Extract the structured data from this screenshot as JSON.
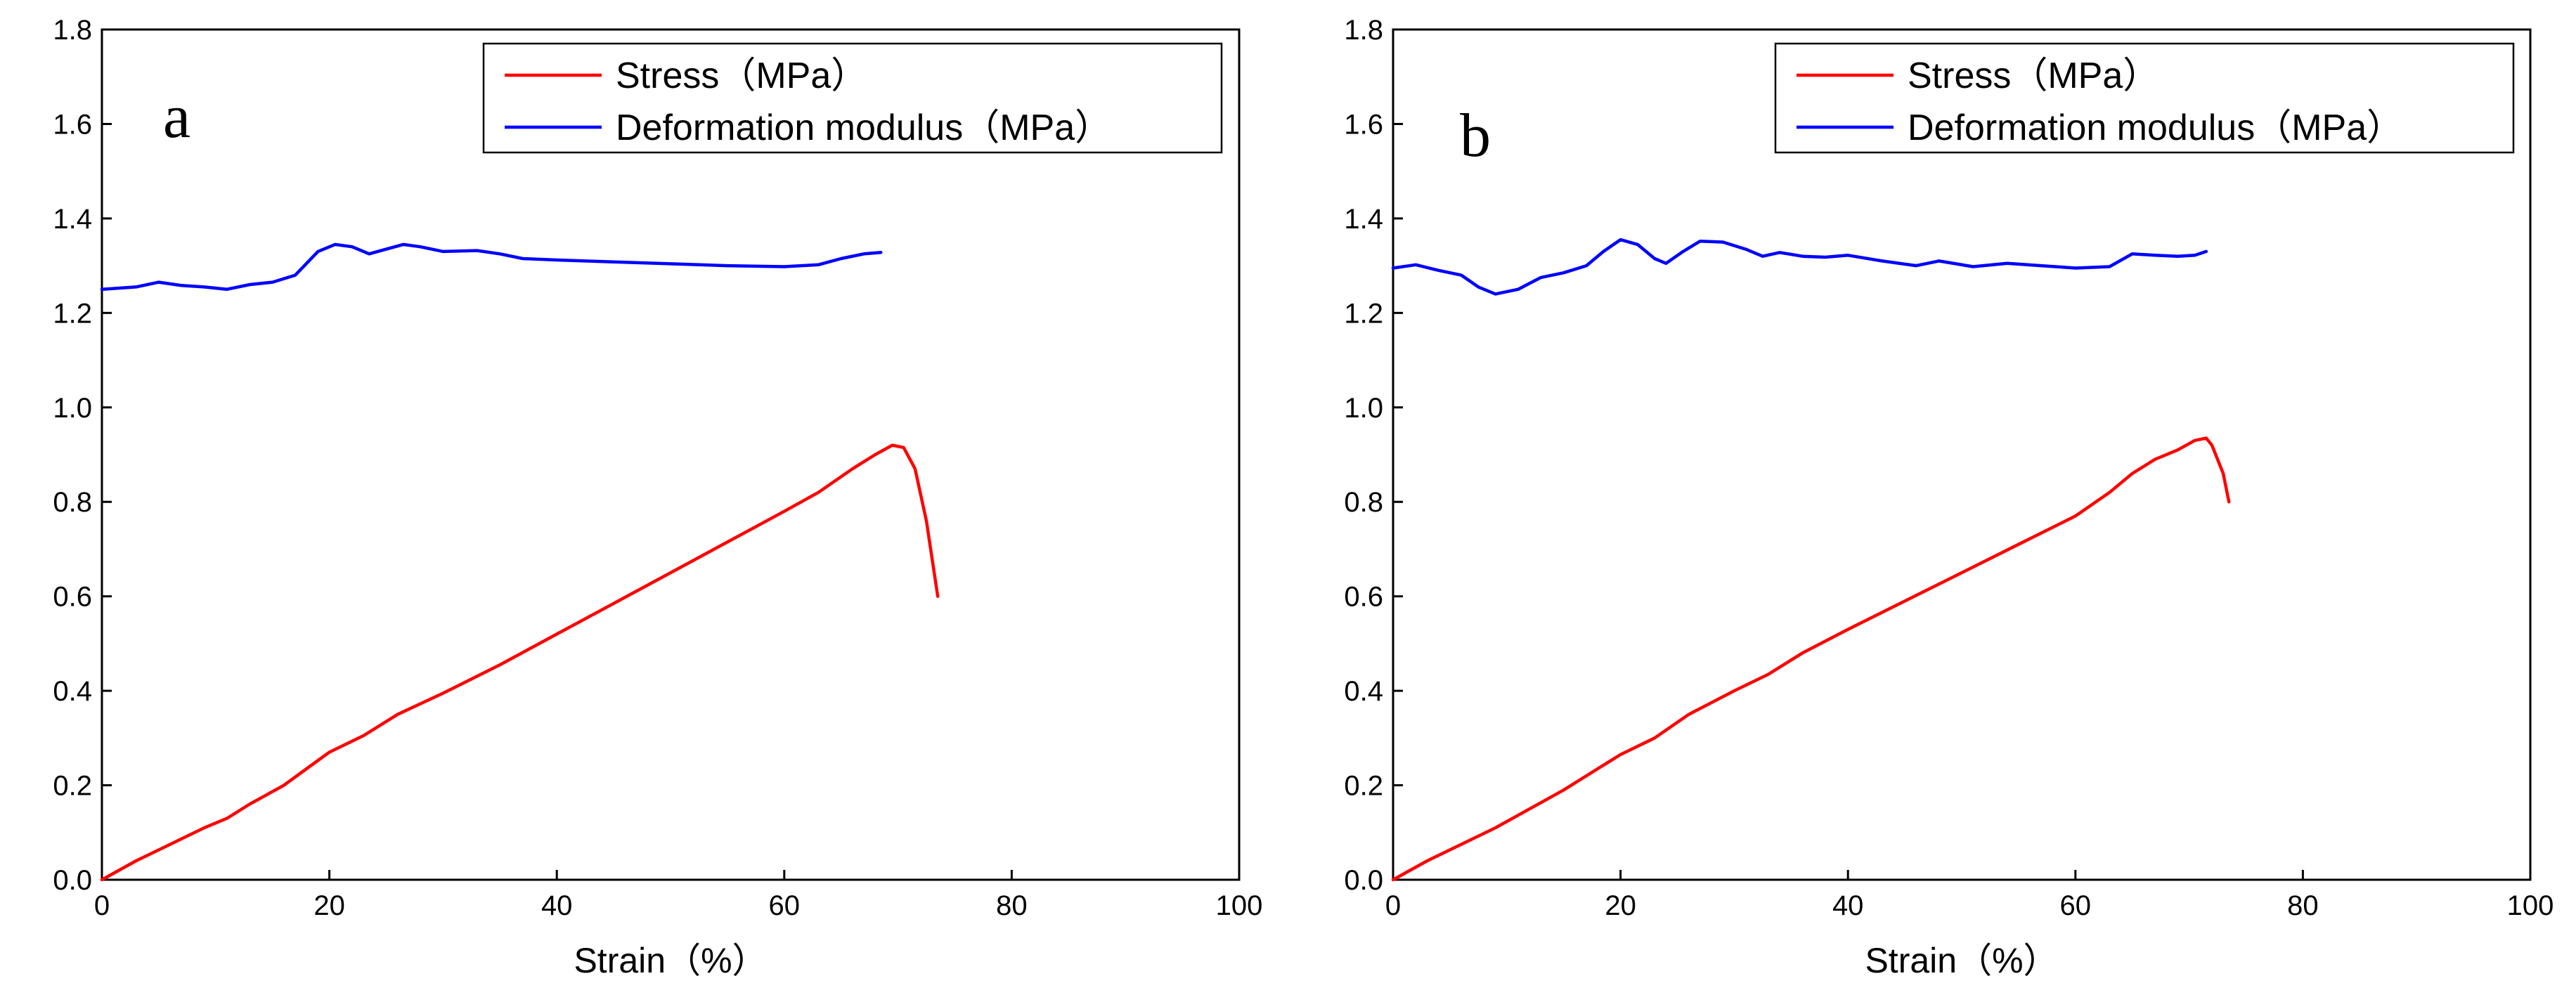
{
  "chart_data": [
    {
      "type": "line",
      "panel_label": "a",
      "xlabel": "Strain（%）",
      "ylabel": "",
      "xlim": [
        0,
        100
      ],
      "ylim": [
        0,
        1.8
      ],
      "xticks": [
        "0",
        "20",
        "40",
        "60",
        "80",
        "100"
      ],
      "yticks": [
        "0.0",
        "0.2",
        "0.4",
        "0.6",
        "0.8",
        "1.0",
        "1.2",
        "1.4",
        "1.6",
        "1.8"
      ],
      "legend_position": "top-right",
      "series": [
        {
          "name": "Stress（MPa）",
          "color": "#ff0000",
          "points": [
            [
              0,
              0
            ],
            [
              3,
              0.04
            ],
            [
              6,
              0.075
            ],
            [
              9,
              0.11
            ],
            [
              11,
              0.13
            ],
            [
              13,
              0.16
            ],
            [
              16,
              0.2
            ],
            [
              18,
              0.235
            ],
            [
              20,
              0.27
            ],
            [
              23,
              0.305
            ],
            [
              26,
              0.35
            ],
            [
              30,
              0.395
            ],
            [
              35,
              0.455
            ],
            [
              40,
              0.52
            ],
            [
              45,
              0.585
            ],
            [
              50,
              0.65
            ],
            [
              55,
              0.715
            ],
            [
              60,
              0.78
            ],
            [
              63,
              0.82
            ],
            [
              66,
              0.87
            ],
            [
              68,
              0.9
            ],
            [
              69.5,
              0.92
            ],
            [
              70.5,
              0.915
            ],
            [
              71.5,
              0.87
            ],
            [
              72.5,
              0.76
            ],
            [
              73.5,
              0.6
            ]
          ]
        },
        {
          "name": "Deformation modulus（MPa）",
          "color": "#0000ff",
          "points": [
            [
              0,
              1.25
            ],
            [
              3,
              1.255
            ],
            [
              5,
              1.265
            ],
            [
              7,
              1.258
            ],
            [
              9,
              1.255
            ],
            [
              11,
              1.25
            ],
            [
              13,
              1.26
            ],
            [
              15,
              1.265
            ],
            [
              17,
              1.28
            ],
            [
              19,
              1.33
            ],
            [
              20.5,
              1.345
            ],
            [
              22,
              1.34
            ],
            [
              23.5,
              1.325
            ],
            [
              25,
              1.335
            ],
            [
              26.5,
              1.345
            ],
            [
              28,
              1.34
            ],
            [
              30,
              1.33
            ],
            [
              33,
              1.332
            ],
            [
              35,
              1.325
            ],
            [
              37,
              1.315
            ],
            [
              40,
              1.312
            ],
            [
              45,
              1.308
            ],
            [
              50,
              1.304
            ],
            [
              55,
              1.3
            ],
            [
              60,
              1.298
            ],
            [
              63,
              1.302
            ],
            [
              65,
              1.315
            ],
            [
              67,
              1.325
            ],
            [
              68.5,
              1.328
            ]
          ]
        }
      ]
    },
    {
      "type": "line",
      "panel_label": "b",
      "xlabel": "Strain（%）",
      "ylabel": "",
      "xlim": [
        0,
        100
      ],
      "ylim": [
        0,
        1.8
      ],
      "xticks": [
        "0",
        "20",
        "40",
        "60",
        "80",
        "100"
      ],
      "yticks": [
        "0.0",
        "0.2",
        "0.4",
        "0.6",
        "0.8",
        "1.0",
        "1.2",
        "1.4",
        "1.6",
        "1.8"
      ],
      "legend_position": "top-right",
      "series": [
        {
          "name": "Stress（MPa）",
          "color": "#ff0000",
          "points": [
            [
              0,
              0
            ],
            [
              3,
              0.04
            ],
            [
              6,
              0.075
            ],
            [
              9,
              0.11
            ],
            [
              12,
              0.15
            ],
            [
              15,
              0.19
            ],
            [
              18,
              0.235
            ],
            [
              20,
              0.265
            ],
            [
              23,
              0.3
            ],
            [
              26,
              0.35
            ],
            [
              30,
              0.4
            ],
            [
              33,
              0.435
            ],
            [
              36,
              0.48
            ],
            [
              40,
              0.53
            ],
            [
              45,
              0.59
            ],
            [
              50,
              0.65
            ],
            [
              55,
              0.71
            ],
            [
              60,
              0.77
            ],
            [
              63,
              0.82
            ],
            [
              65,
              0.86
            ],
            [
              67,
              0.89
            ],
            [
              69,
              0.91
            ],
            [
              70.5,
              0.93
            ],
            [
              71.5,
              0.935
            ],
            [
              72,
              0.92
            ],
            [
              73,
              0.86
            ],
            [
              73.5,
              0.8
            ]
          ]
        },
        {
          "name": "Deformation modulus（MPa）",
          "color": "#0000ff",
          "points": [
            [
              0,
              1.295
            ],
            [
              2,
              1.302
            ],
            [
              4,
              1.29
            ],
            [
              6,
              1.28
            ],
            [
              7.5,
              1.255
            ],
            [
              9,
              1.24
            ],
            [
              11,
              1.25
            ],
            [
              13,
              1.275
            ],
            [
              15,
              1.285
            ],
            [
              17,
              1.3
            ],
            [
              18.5,
              1.33
            ],
            [
              20,
              1.355
            ],
            [
              21.5,
              1.345
            ],
            [
              23,
              1.315
            ],
            [
              24,
              1.305
            ],
            [
              25.5,
              1.33
            ],
            [
              27,
              1.352
            ],
            [
              29,
              1.35
            ],
            [
              31,
              1.335
            ],
            [
              32.5,
              1.32
            ],
            [
              34,
              1.328
            ],
            [
              36,
              1.32
            ],
            [
              38,
              1.318
            ],
            [
              40,
              1.322
            ],
            [
              43,
              1.31
            ],
            [
              46,
              1.3
            ],
            [
              48,
              1.31
            ],
            [
              51,
              1.298
            ],
            [
              54,
              1.305
            ],
            [
              57,
              1.3
            ],
            [
              60,
              1.295
            ],
            [
              63,
              1.298
            ],
            [
              65,
              1.325
            ],
            [
              67,
              1.322
            ],
            [
              69,
              1.32
            ],
            [
              70.5,
              1.322
            ],
            [
              71.5,
              1.33
            ]
          ]
        }
      ]
    }
  ]
}
